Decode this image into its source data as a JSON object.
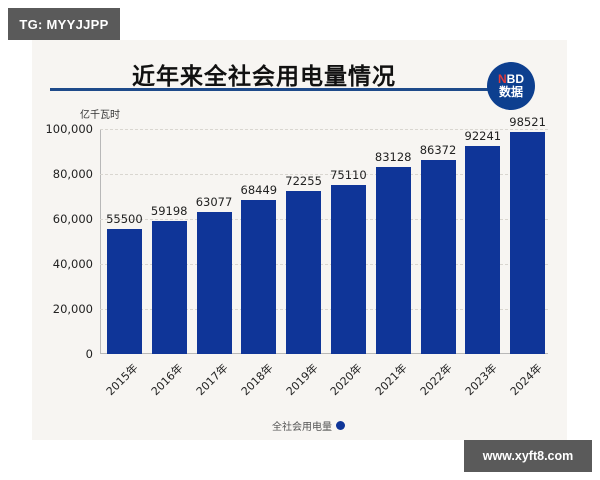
{
  "watermarks": {
    "top_tag": "TG: MYYJJPP",
    "bottom_tag": "www.xyft8.com"
  },
  "badge": {
    "line1_n": "N",
    "line1_rest": "BD",
    "line2": "数据"
  },
  "colors": {
    "bar": "#0f3598",
    "title_rule": "#1e4a8a",
    "badge_bg": "#0d3f8f",
    "panel_bg": "#f7f5f2"
  },
  "chart_data": {
    "type": "bar",
    "title": "近年来全社会用电量情况",
    "ylabel": "亿千瓦时",
    "xlabel": "",
    "categories": [
      "2015年",
      "2016年",
      "2017年",
      "2018年",
      "2019年",
      "2020年",
      "2021年",
      "2022年",
      "2023年",
      "2024年"
    ],
    "series": [
      {
        "name": "全社会用电量",
        "values": [
          55500,
          59198,
          63077,
          68449,
          72255,
          75110,
          83128,
          86372,
          92241,
          98521
        ]
      }
    ],
    "value_labels": [
      "55500",
      "59198",
      "63077",
      "68449",
      "72255",
      "75110",
      "83128",
      "86372",
      "92241",
      "98521"
    ],
    "ylim": [
      0,
      100000
    ],
    "yticks": [
      "0",
      "20,000",
      "40,000",
      "60,000",
      "80,000",
      "100,000"
    ],
    "grid": true,
    "legend_position": "bottom-center"
  }
}
